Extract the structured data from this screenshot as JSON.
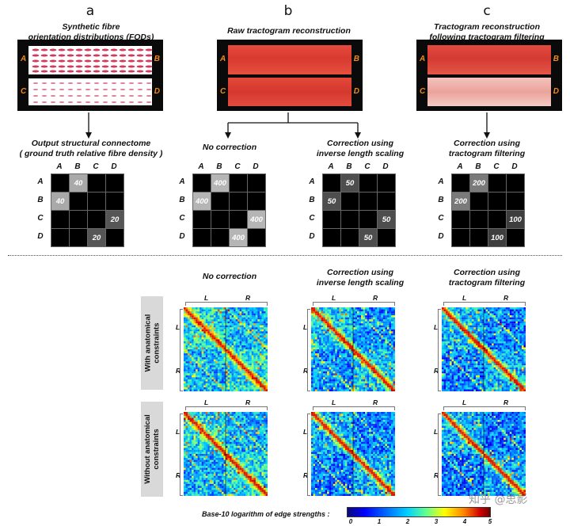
{
  "panel_labels": {
    "a": "a",
    "b": "b",
    "c": "c"
  },
  "top_captions": {
    "a": [
      "Synthetic fibre",
      "orientation distributions (FODs)"
    ],
    "b": [
      "Raw tractogram reconstruction"
    ],
    "c": [
      "Tractogram reconstruction",
      "following tractogram filtering"
    ]
  },
  "row_labels": {
    "A": "A",
    "B": "B",
    "C": "C",
    "D": "D"
  },
  "matrix_captions": {
    "a": [
      "Output structural connectome",
      "( ground truth relative fibre density )"
    ],
    "b1": [
      "No correction"
    ],
    "b2": [
      "Correction using",
      "inverse length scaling"
    ],
    "c": [
      "Correction using",
      "tractogram filtering"
    ]
  },
  "matrix_values": {
    "a": {
      "ab": "40",
      "ba": "40",
      "cd": "20",
      "dc": "20"
    },
    "b1": {
      "ab": "400",
      "ba": "400",
      "cd": "400",
      "dc": "400"
    },
    "b2": {
      "ab": "50",
      "ba": "50",
      "cd": "50",
      "dc": "50"
    },
    "c": {
      "ab": "200",
      "ba": "200",
      "cd": "100",
      "dc": "100"
    }
  },
  "bottom_captions": {
    "col1": [
      "No correction"
    ],
    "col2": [
      "Correction using",
      "inverse length scaling"
    ],
    "col3": [
      "Correction using",
      "tractogram filtering"
    ]
  },
  "row_bands": {
    "with": [
      "With anatomical",
      "constraints"
    ],
    "without": [
      "Without anatomical",
      "constraints"
    ]
  },
  "hemi_labels": {
    "L": "L",
    "R": "R"
  },
  "colorbar": {
    "label": "Base-10 logarithm of edge strengths :",
    "ticks": [
      "0",
      "1",
      "2",
      "3",
      "4",
      "5"
    ]
  },
  "watermark": "知乎 @思影",
  "colors": {
    "orange": "#f08a1c",
    "red": "#e03a3a",
    "black": "#0a0a0a"
  }
}
